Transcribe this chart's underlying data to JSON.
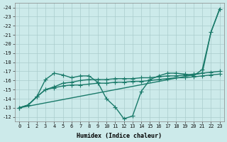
{
  "xlabel": "Humidex (Indice chaleur)",
  "background_color": "#cceaea",
  "grid_color": "#aacccc",
  "line_color": "#1a7a6a",
  "xlim": [
    -0.5,
    23.5
  ],
  "ylim": [
    -24.5,
    -11.5
  ],
  "xticks": [
    0,
    1,
    2,
    3,
    4,
    5,
    6,
    7,
    8,
    9,
    10,
    11,
    12,
    13,
    14,
    15,
    16,
    17,
    18,
    19,
    20,
    21,
    22,
    23
  ],
  "yticks": [
    -12,
    -13,
    -14,
    -15,
    -16,
    -17,
    -18,
    -19,
    -20,
    -21,
    -22,
    -23,
    -24
  ],
  "series": [
    {
      "x": [
        0,
        1,
        2,
        3,
        4,
        5,
        6,
        7,
        8,
        9,
        10,
        11,
        12,
        13,
        14,
        15,
        16,
        17,
        18,
        19,
        20,
        21,
        22,
        23
      ],
      "y": [
        -13.0,
        -13.3,
        -14.2,
        -16.1,
        -16.8,
        -16.6,
        -16.3,
        -16.5,
        -16.5,
        -15.8,
        -14.0,
        -13.1,
        -11.8,
        -12.1,
        -14.8,
        -16.1,
        -16.5,
        -16.8,
        -16.8,
        -16.7,
        -16.5,
        -17.2,
        -21.3,
        -23.8
      ],
      "marker": "+",
      "linewidth": 1.0,
      "markersize": 4
    },
    {
      "x": [
        0,
        1,
        2,
        3,
        4,
        5,
        6,
        7,
        8,
        9,
        10,
        11,
        12,
        13,
        14,
        15,
        16,
        17,
        18,
        19,
        20,
        21,
        22,
        23
      ],
      "y": [
        -13.0,
        -13.3,
        -14.2,
        -15.0,
        -15.2,
        -15.4,
        -15.5,
        -15.5,
        -15.6,
        -15.7,
        -15.7,
        -15.8,
        -15.8,
        -15.9,
        -15.9,
        -16.0,
        -16.1,
        -16.2,
        -16.3,
        -16.3,
        -16.4,
        -16.5,
        -16.6,
        -16.7
      ],
      "marker": "+",
      "linewidth": 1.0,
      "markersize": 4
    },
    {
      "x": [
        0,
        1,
        2,
        3,
        4,
        5,
        6,
        7,
        8,
        9,
        10,
        11,
        12,
        13,
        14,
        15,
        16,
        17,
        18,
        19,
        20,
        21,
        22,
        23
      ],
      "y": [
        -13.0,
        -13.3,
        -14.2,
        -15.0,
        -15.3,
        -15.7,
        -15.8,
        -16.0,
        -16.1,
        -16.1,
        -16.1,
        -16.2,
        -16.2,
        -16.2,
        -16.3,
        -16.3,
        -16.4,
        -16.5,
        -16.5,
        -16.6,
        -16.7,
        -16.8,
        -16.9,
        -17.0
      ],
      "marker": "+",
      "linewidth": 1.0,
      "markersize": 4
    },
    {
      "x": [
        0,
        21,
        22,
        23
      ],
      "y": [
        -13.0,
        -16.8,
        -21.3,
        -23.9
      ],
      "marker": null,
      "linewidth": 1.0,
      "markersize": 0
    }
  ]
}
